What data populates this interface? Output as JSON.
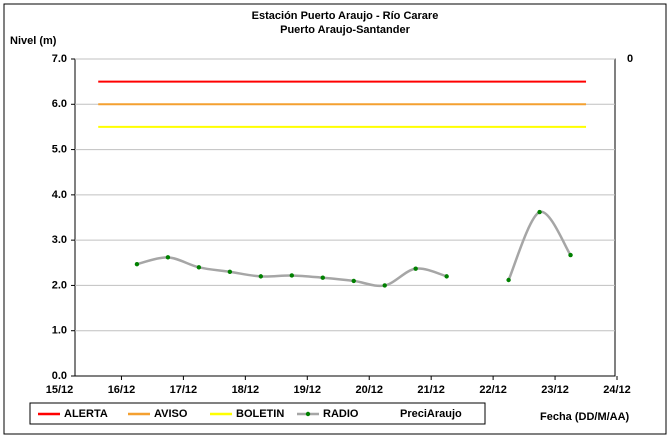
{
  "chart_data": {
    "type": "line",
    "title": "Estación Puerto Araujo - Río Carare",
    "subtitle": "Puerto Araujo-Santander",
    "y_label": "Nivel (m)",
    "x_label": "Fecha (DD/M/AA)",
    "xlim": [
      15.25,
      24
    ],
    "xticks": [
      {
        "value": 15,
        "label": "15/12"
      },
      {
        "value": 16,
        "label": "16/12"
      },
      {
        "value": 17,
        "label": "17/12"
      },
      {
        "value": 18,
        "label": "18/12"
      },
      {
        "value": 19,
        "label": "19/12"
      },
      {
        "value": 20,
        "label": "20/12"
      },
      {
        "value": 21,
        "label": "21/12"
      },
      {
        "value": 22,
        "label": "22/12"
      },
      {
        "value": 23,
        "label": "23/12"
      },
      {
        "value": 24,
        "label": "24/12"
      }
    ],
    "ylim": [
      0,
      7
    ],
    "yticks": [
      {
        "value": 0,
        "label": "0.0"
      },
      {
        "value": 1,
        "label": "1.0"
      },
      {
        "value": 2,
        "label": "2.0"
      },
      {
        "value": 3,
        "label": "3.0"
      },
      {
        "value": 4,
        "label": "4.0"
      },
      {
        "value": 5,
        "label": "5.0"
      },
      {
        "value": 6,
        "label": "6.0"
      },
      {
        "value": 7,
        "label": "7.0"
      }
    ],
    "y2ticks": [
      0
    ],
    "grid": true,
    "legend": "bottom",
    "series": [
      {
        "name": "ALERTA",
        "color": "#ff0000",
        "x": [
          15.625,
          23.5
        ],
        "values": [
          6.5,
          6.5
        ]
      },
      {
        "name": "AVISO",
        "color": "#f4a030",
        "x": [
          15.625,
          23.5
        ],
        "values": [
          6.0,
          6.0
        ]
      },
      {
        "name": "BOLETIN",
        "color": "#ffff00",
        "x": [
          15.625,
          23.5
        ],
        "values": [
          5.5,
          5.5
        ]
      },
      {
        "name": "RADIO",
        "color": "#a6a6a6",
        "marker_color": "#008000",
        "smooth": true,
        "x": [
          16.25,
          16.75,
          17.25,
          17.75,
          18.25,
          18.75,
          19.25,
          19.75,
          20.25,
          20.75,
          21.25,
          21.75,
          22.25,
          22.75,
          23.25
        ],
        "values": [
          2.47,
          2.62,
          2.4,
          2.3,
          2.2,
          2.22,
          2.17,
          2.1,
          2.0,
          2.37,
          2.2,
          null,
          2.12,
          3.62,
          2.67
        ]
      },
      {
        "name": "PreciAraujo",
        "axis": "y2",
        "color": "#000000",
        "x": [],
        "values": []
      }
    ]
  }
}
